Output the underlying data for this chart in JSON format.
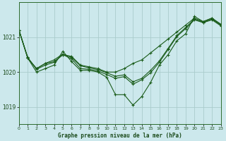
{
  "title": "Graphe pression niveau de la mer (hPa)",
  "background_color": "#cce8ec",
  "grid_color": "#aacccc",
  "line_color": "#1a5c1a",
  "x_min": 0,
  "x_max": 23,
  "y_min": 1018.5,
  "y_max": 1022.0,
  "yticks": [
    1019,
    1020,
    1021
  ],
  "xticks": [
    0,
    1,
    2,
    3,
    4,
    5,
    6,
    7,
    8,
    9,
    10,
    11,
    12,
    13,
    14,
    15,
    16,
    17,
    18,
    19,
    20,
    21,
    22,
    23
  ],
  "series": [
    [
      1021.2,
      1020.4,
      1020.0,
      1020.1,
      1020.2,
      1020.6,
      1020.3,
      1020.05,
      1020.05,
      1020.0,
      1019.85,
      1019.35,
      1019.35,
      1019.05,
      1019.3,
      1019.7,
      1020.2,
      1020.5,
      1020.9,
      1021.1,
      1021.6,
      1021.45,
      1021.55,
      1021.35
    ],
    [
      1021.2,
      1020.4,
      1020.1,
      1020.25,
      1020.3,
      1020.5,
      1020.45,
      1020.2,
      1020.15,
      1020.1,
      1020.0,
      1020.0,
      1020.1,
      1020.25,
      1020.35,
      1020.55,
      1020.75,
      1020.95,
      1021.15,
      1021.35,
      1021.55,
      1021.45,
      1021.55,
      1021.38
    ],
    [
      1021.2,
      1020.4,
      1020.1,
      1020.25,
      1020.35,
      1020.52,
      1020.42,
      1020.18,
      1020.12,
      1020.07,
      1019.98,
      1019.88,
      1019.92,
      1019.72,
      1019.82,
      1020.05,
      1020.32,
      1020.68,
      1021.05,
      1021.28,
      1021.52,
      1021.43,
      1021.52,
      1021.36
    ],
    [
      1021.2,
      1020.42,
      1020.08,
      1020.2,
      1020.28,
      1020.5,
      1020.38,
      1020.1,
      1020.08,
      1020.03,
      1019.93,
      1019.82,
      1019.87,
      1019.65,
      1019.78,
      1019.98,
      1020.28,
      1020.65,
      1021.02,
      1021.25,
      1021.5,
      1021.42,
      1021.5,
      1021.33
    ]
  ]
}
